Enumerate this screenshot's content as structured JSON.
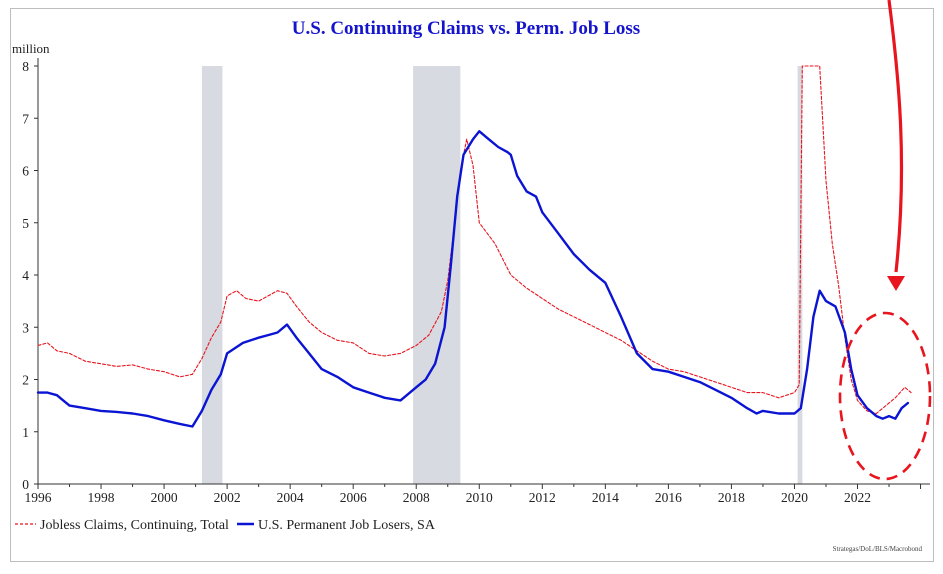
{
  "chart_data": {
    "type": "line",
    "title": "U.S. Continuing Claims vs. Perm. Job Loss",
    "unit_label": "million",
    "source": "Strategas/DoL/BLS/Macrobond",
    "xlim": [
      1996,
      2024.3
    ],
    "ylim": [
      0,
      8
    ],
    "x_ticks": [
      "1996",
      "1998",
      "2000",
      "2002",
      "2004",
      "2006",
      "2008",
      "2010",
      "2012",
      "2014",
      "2016",
      "2018",
      "2020",
      "2022"
    ],
    "y_ticks": [
      "0",
      "1",
      "2",
      "3",
      "4",
      "5",
      "6",
      "7",
      "8"
    ],
    "recessions": [
      {
        "start": 2001.2,
        "end": 2001.85
      },
      {
        "start": 2007.9,
        "end": 2009.4
      },
      {
        "start": 2020.1,
        "end": 2020.25
      }
    ],
    "series": [
      {
        "name": "Jobless Claims, Continuing, Total",
        "color": "#e8141e",
        "style": "dashed",
        "x": [
          1996.0,
          1996.3,
          1996.6,
          1997.0,
          1997.5,
          1998.0,
          1998.5,
          1999.0,
          1999.5,
          2000.0,
          2000.5,
          2000.9,
          2001.2,
          2001.5,
          2001.8,
          2002.0,
          2002.3,
          2002.6,
          2003.0,
          2003.3,
          2003.6,
          2003.9,
          2004.2,
          2004.6,
          2005.0,
          2005.5,
          2006.0,
          2006.5,
          2007.0,
          2007.5,
          2008.0,
          2008.4,
          2008.8,
          2009.0,
          2009.2,
          2009.4,
          2009.6,
          2009.8,
          2010.0,
          2010.5,
          2011.0,
          2011.5,
          2012.0,
          2012.5,
          2013.0,
          2013.5,
          2014.0,
          2014.5,
          2015.0,
          2015.5,
          2016.0,
          2016.5,
          2017.0,
          2017.5,
          2018.0,
          2018.5,
          2019.0,
          2019.5,
          2020.0,
          2020.15,
          2020.25,
          2020.35,
          2020.5,
          2020.7,
          2020.8,
          2021.0,
          2021.2,
          2021.4,
          2021.6,
          2021.8,
          2022.0,
          2022.3,
          2022.6,
          2022.9,
          2023.2,
          2023.5,
          2023.7
        ],
        "values": [
          2.65,
          2.7,
          2.55,
          2.5,
          2.35,
          2.3,
          2.25,
          2.28,
          2.2,
          2.15,
          2.05,
          2.1,
          2.4,
          2.8,
          3.1,
          3.6,
          3.7,
          3.55,
          3.5,
          3.6,
          3.7,
          3.65,
          3.4,
          3.1,
          2.9,
          2.75,
          2.7,
          2.5,
          2.45,
          2.5,
          2.65,
          2.85,
          3.3,
          3.9,
          4.9,
          6.0,
          6.6,
          6.1,
          5.0,
          4.6,
          4.0,
          3.75,
          3.55,
          3.35,
          3.2,
          3.05,
          2.9,
          2.75,
          2.55,
          2.35,
          2.2,
          2.15,
          2.05,
          1.95,
          1.85,
          1.75,
          1.75,
          1.65,
          1.75,
          1.9,
          8.0,
          8.0,
          8.0,
          8.0,
          8.0,
          5.8,
          4.6,
          3.8,
          2.8,
          2.0,
          1.6,
          1.4,
          1.35,
          1.5,
          1.65,
          1.85,
          1.75
        ]
      },
      {
        "name": "U.S. Permanent Job Losers, SA",
        "color": "#0a14d2",
        "style": "solid",
        "x": [
          1996.0,
          1996.3,
          1996.6,
          1996.8,
          1997.0,
          1997.5,
          1998.0,
          1998.5,
          1999.0,
          1999.5,
          2000.0,
          2000.5,
          2000.9,
          2001.0,
          2001.2,
          2001.5,
          2001.8,
          2002.0,
          2002.5,
          2003.0,
          2003.3,
          2003.6,
          2003.9,
          2004.2,
          2004.6,
          2005.0,
          2005.5,
          2006.0,
          2006.5,
          2007.0,
          2007.5,
          2008.0,
          2008.3,
          2008.6,
          2008.9,
          2009.1,
          2009.3,
          2009.5,
          2009.8,
          2010.0,
          2010.3,
          2010.6,
          2010.9,
          2011.0,
          2011.2,
          2011.5,
          2011.8,
          2012.0,
          2012.5,
          2013.0,
          2013.5,
          2014.0,
          2014.5,
          2015.0,
          2015.5,
          2016.0,
          2016.5,
          2017.0,
          2017.5,
          2018.0,
          2018.5,
          2018.8,
          2019.0,
          2019.5,
          2020.0,
          2020.2,
          2020.4,
          2020.6,
          2020.8,
          2021.0,
          2021.3,
          2021.6,
          2021.8,
          2022.0,
          2022.3,
          2022.6,
          2022.8,
          2023.0,
          2023.2,
          2023.4,
          2023.6
        ],
        "values": [
          1.75,
          1.75,
          1.7,
          1.6,
          1.5,
          1.45,
          1.4,
          1.38,
          1.35,
          1.3,
          1.22,
          1.15,
          1.1,
          1.2,
          1.4,
          1.8,
          2.1,
          2.5,
          2.7,
          2.8,
          2.85,
          2.9,
          3.05,
          2.8,
          2.5,
          2.2,
          2.05,
          1.85,
          1.75,
          1.65,
          1.6,
          1.85,
          2.0,
          2.3,
          3.0,
          4.2,
          5.5,
          6.3,
          6.6,
          6.75,
          6.6,
          6.45,
          6.35,
          6.3,
          5.9,
          5.6,
          5.5,
          5.2,
          4.8,
          4.4,
          4.1,
          3.85,
          3.2,
          2.5,
          2.2,
          2.15,
          2.05,
          1.95,
          1.8,
          1.65,
          1.45,
          1.35,
          1.4,
          1.35,
          1.35,
          1.45,
          2.2,
          3.2,
          3.7,
          3.5,
          3.4,
          2.9,
          2.2,
          1.7,
          1.45,
          1.3,
          1.25,
          1.3,
          1.25,
          1.45,
          1.55
        ]
      }
    ]
  },
  "annotations": {
    "arrow_color": "#e8141e",
    "circle_color": "#e8141e"
  }
}
